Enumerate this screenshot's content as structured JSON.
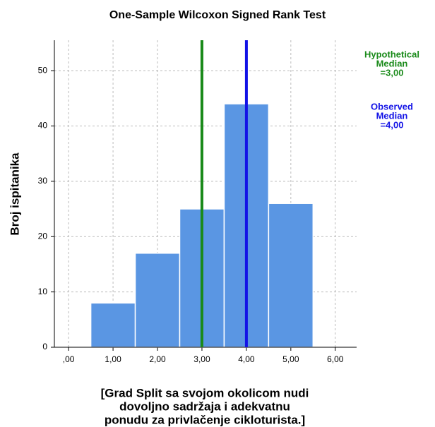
{
  "chart_data": {
    "type": "histogram",
    "title": "One-Sample Wilcoxon Signed Rank Test",
    "y_label": "Broj ispitanika",
    "x_label": [
      "[Grad Split sa svojom okolicom nudi",
      "dovoljno sadržaja i adekvatnu",
      "ponudu za privlačenje cikloturista.]"
    ],
    "bins": [
      0.5,
      1.5,
      2.5,
      3.5,
      4.5,
      5.5
    ],
    "values": [
      8,
      17,
      25,
      44,
      26
    ],
    "color": "#5a96e3",
    "xlim": [
      -0.32,
      6.48
    ],
    "ylim": [
      0,
      55.5
    ],
    "xticks": [
      {
        "value": 0,
        "label": ",00"
      },
      {
        "value": 1,
        "label": "1,00"
      },
      {
        "value": 2,
        "label": "2,00"
      },
      {
        "value": 3,
        "label": "3,00"
      },
      {
        "value": 4,
        "label": "4,00"
      },
      {
        "value": 5,
        "label": "5,00"
      },
      {
        "value": 6,
        "label": "6,00"
      }
    ],
    "yticks": [
      0,
      10,
      20,
      30,
      40,
      50
    ],
    "grid": true,
    "reference_lines": [
      {
        "value": 3,
        "color": "#1a8a1a",
        "label": [
          "Hypothetical",
          "Median",
          "=3,00"
        ]
      },
      {
        "value": 4,
        "color": "#1212e6",
        "label": [
          "Observed",
          "Median",
          "=4,00"
        ]
      }
    ]
  }
}
